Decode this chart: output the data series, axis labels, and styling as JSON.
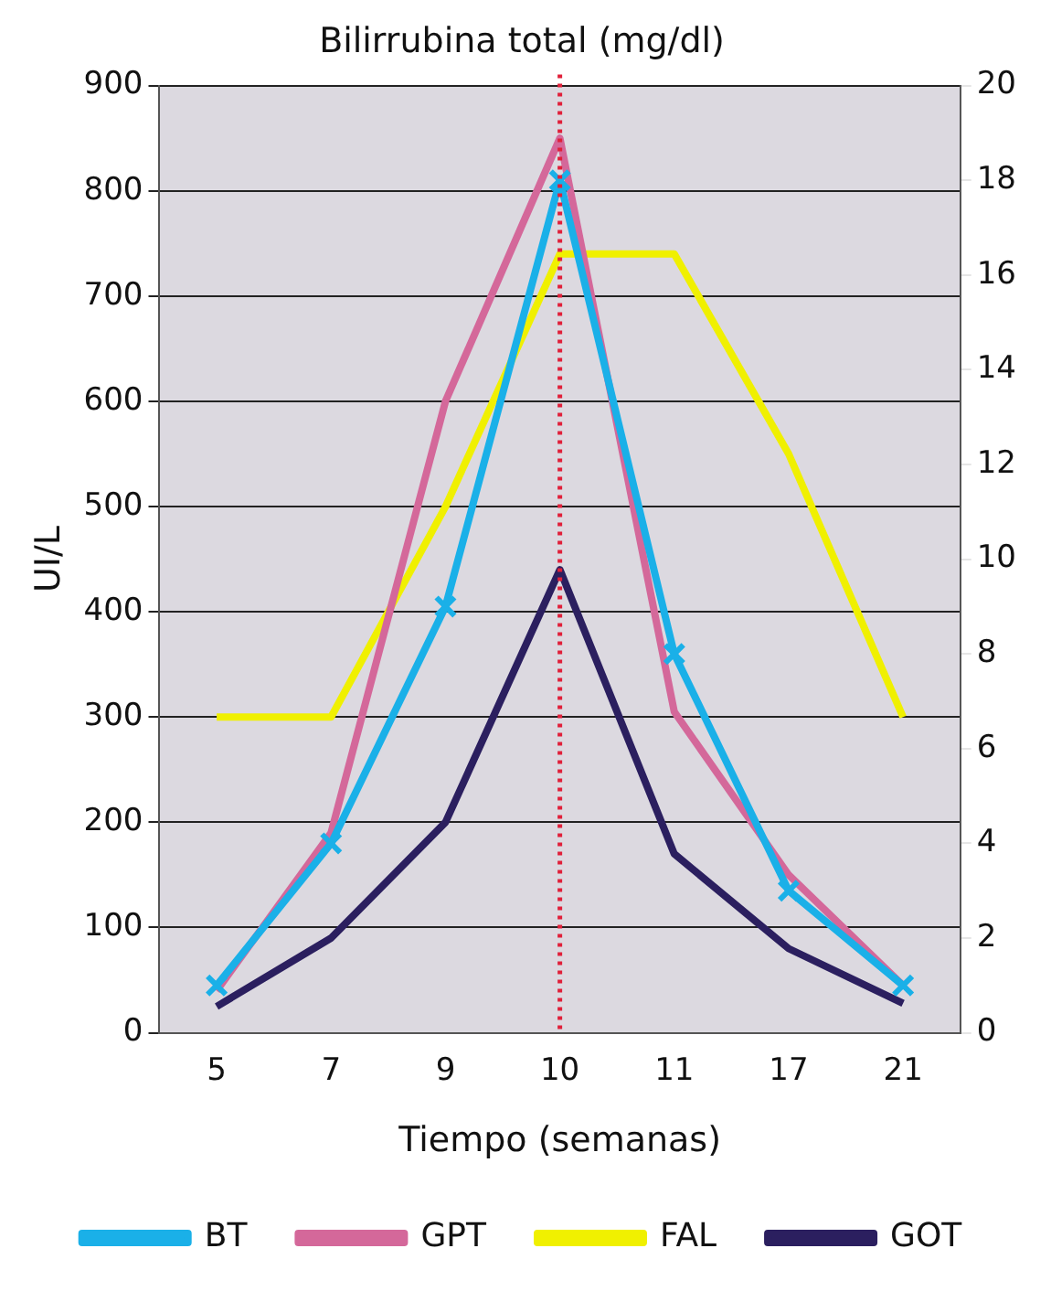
{
  "chart_data": {
    "type": "line",
    "title": "Bilirrubina total (mg/dl)",
    "xlabel": "Tiempo (semanas)",
    "ylabel": "UI/L",
    "categories": [
      "5",
      "7",
      "9",
      "10",
      "11",
      "17",
      "21"
    ],
    "series": [
      {
        "name": "GOT",
        "color": "#2b1f5f",
        "values": [
          25,
          90,
          200,
          440,
          170,
          80,
          28
        ]
      },
      {
        "name": "FAL",
        "color": "#f0f000",
        "values": [
          300,
          300,
          500,
          740,
          740,
          550,
          300
        ]
      },
      {
        "name": "GPT",
        "color": "#d4689a",
        "values": [
          40,
          190,
          600,
          850,
          305,
          150,
          45
        ]
      },
      {
        "name": "BT",
        "color": "#1ab0e8",
        "values": [
          1,
          4,
          9,
          18,
          8,
          3,
          1
        ],
        "axis": "y2",
        "marker": "cross"
      }
    ],
    "ylim": [
      0,
      900
    ],
    "yticks": [
      0,
      100,
      200,
      300,
      400,
      500,
      600,
      700,
      800,
      900
    ],
    "y2lim": [
      0,
      20
    ],
    "y2ticks": [
      0,
      2,
      4,
      6,
      8,
      10,
      12,
      14,
      16,
      18,
      20
    ],
    "ref_lines": [
      {
        "axis": "x",
        "value": "10",
        "color": "#e0203a",
        "line_style": "dotted"
      }
    ],
    "grid": "y",
    "legend": "bottom",
    "marker": "none"
  }
}
